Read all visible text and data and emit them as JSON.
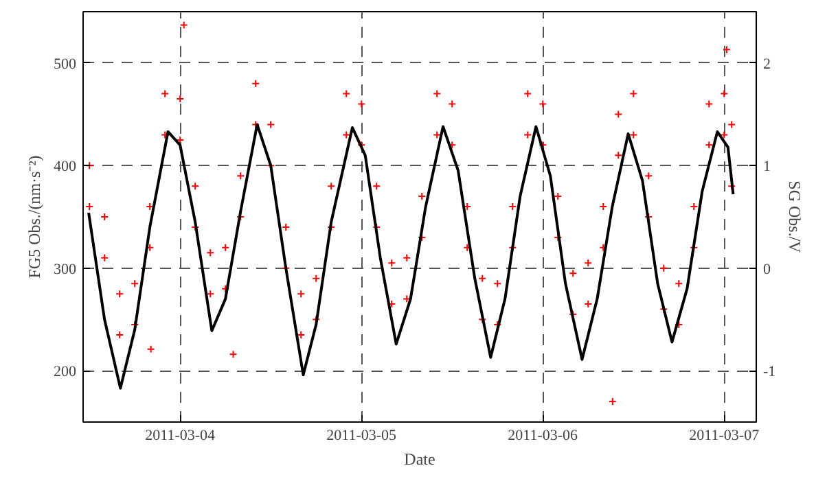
{
  "chart_data": {
    "type": "scatter",
    "xlabel": "Date",
    "ylabel": "FG5 Obs./(nm·s⁻²)",
    "y2label": "SG Obs./V",
    "xlim": [
      "2011-03-03T11:10",
      "2011-03-07T04:15"
    ],
    "xticks": [
      "2011-03-04",
      "2011-03-05",
      "2011-03-06",
      "2011-03-07"
    ],
    "ylim": [
      150,
      550
    ],
    "yticks": [
      200,
      300,
      400,
      500
    ],
    "y2lim": [
      -1.5,
      2.5
    ],
    "y2ticks": [
      -1,
      0,
      1,
      2
    ],
    "grid": true,
    "series": [
      {
        "marker": "cross",
        "color": "#ff0000",
        "x": [
          "2011-03-03T12:00",
          "2011-03-03T12:00",
          "2011-03-03T14:00",
          "2011-03-03T14:00",
          "2011-03-03T16:00",
          "2011-03-03T16:00",
          "2011-03-03T18:00",
          "2011-03-03T18:00",
          "2011-03-03T20:00",
          "2011-03-03T20:00",
          "2011-03-03T22:00",
          "2011-03-03T22:00",
          "2011-03-04T00:00",
          "2011-03-04T00:00",
          "2011-03-04T02:00",
          "2011-03-04T02:00",
          "2011-03-04T04:00",
          "2011-03-04T04:00",
          "2011-03-04T06:00",
          "2011-03-04T06:00",
          "2011-03-04T08:00",
          "2011-03-04T08:00",
          "2011-03-04T10:00",
          "2011-03-04T10:00",
          "2011-03-04T12:00",
          "2011-03-04T12:00",
          "2011-03-04T14:00",
          "2011-03-04T14:00",
          "2011-03-04T16:00",
          "2011-03-04T16:00",
          "2011-03-04T18:00",
          "2011-03-04T18:00",
          "2011-03-04T20:00",
          "2011-03-04T20:00",
          "2011-03-04T22:00",
          "2011-03-04T22:00",
          "2011-03-05T00:00",
          "2011-03-05T00:00",
          "2011-03-05T02:00",
          "2011-03-05T02:00",
          "2011-03-05T04:00",
          "2011-03-05T04:00",
          "2011-03-05T06:00",
          "2011-03-05T06:00",
          "2011-03-05T08:00",
          "2011-03-05T08:00",
          "2011-03-05T10:00",
          "2011-03-05T10:00",
          "2011-03-05T12:00",
          "2011-03-05T12:00",
          "2011-03-05T14:00",
          "2011-03-05T14:00",
          "2011-03-05T16:00",
          "2011-03-05T16:00",
          "2011-03-05T18:00",
          "2011-03-05T18:00",
          "2011-03-05T20:00",
          "2011-03-05T20:00",
          "2011-03-05T22:00",
          "2011-03-05T22:00",
          "2011-03-06T00:00",
          "2011-03-06T00:00",
          "2011-03-06T02:00",
          "2011-03-06T02:00",
          "2011-03-06T04:00",
          "2011-03-06T04:00",
          "2011-03-06T06:00",
          "2011-03-06T06:00",
          "2011-03-06T08:00",
          "2011-03-06T08:00",
          "2011-03-06T10:00",
          "2011-03-06T10:00",
          "2011-03-06T12:00",
          "2011-03-06T12:00",
          "2011-03-06T14:00",
          "2011-03-06T14:00",
          "2011-03-06T16:00",
          "2011-03-06T16:00",
          "2011-03-06T18:00",
          "2011-03-06T18:00",
          "2011-03-06T20:00",
          "2011-03-06T20:00",
          "2011-03-06T22:00",
          "2011-03-06T22:00",
          "2011-03-07T00:00",
          "2011-03-07T00:00",
          "2011-03-07T01:00",
          "2011-03-07T01:00",
          "2011-03-04T00:30",
          "2011-03-03T20:08",
          "2011-03-04T07:02",
          "2011-03-06T09:14",
          "2011-03-07T00:20"
        ],
        "values": [
          400,
          360,
          350,
          310,
          275,
          235,
          285,
          245,
          360,
          320,
          470,
          430,
          465,
          425,
          380,
          340,
          315,
          275,
          320,
          280,
          390,
          350,
          480,
          440,
          440,
          400,
          340,
          300,
          275,
          235,
          290,
          250,
          380,
          340,
          470,
          430,
          460,
          420,
          380,
          340,
          305,
          265,
          310,
          270,
          370,
          330,
          470,
          430,
          460,
          420,
          360,
          320,
          290,
          250,
          285,
          245,
          360,
          320,
          470,
          430,
          460,
          420,
          370,
          330,
          295,
          255,
          305,
          265,
          360,
          320,
          450,
          410,
          470,
          430,
          390,
          350,
          300,
          260,
          285,
          245,
          360,
          320,
          460,
          420,
          470,
          430,
          440,
          380,
          537,
          221,
          216,
          170,
          513
        ]
      },
      {
        "type": "line",
        "axis": "y2",
        "color": "#000000",
        "x": [
          "2011-03-03T11:54",
          "2011-03-03T14:00",
          "2011-03-03T16:06",
          "2011-03-03T18:00",
          "2011-03-03T20:00",
          "2011-03-03T22:24",
          "2011-03-04T00:00",
          "2011-03-04T02:00",
          "2011-03-04T04:12",
          "2011-03-04T06:00",
          "2011-03-04T08:00",
          "2011-03-04T10:12",
          "2011-03-04T12:00",
          "2011-03-04T14:00",
          "2011-03-04T16:18",
          "2011-03-04T18:00",
          "2011-03-04T20:00",
          "2011-03-04T22:48",
          "2011-03-05T00:30",
          "2011-03-05T02:30",
          "2011-03-05T04:36",
          "2011-03-05T06:30",
          "2011-03-05T08:30",
          "2011-03-05T10:48",
          "2011-03-05T12:48",
          "2011-03-05T15:00",
          "2011-03-05T17:06",
          "2011-03-05T19:00",
          "2011-03-05T21:00",
          "2011-03-05T23:06",
          "2011-03-06T01:00",
          "2011-03-06T03:00",
          "2011-03-06T05:12",
          "2011-03-06T07:12",
          "2011-03-06T09:12",
          "2011-03-06T11:18",
          "2011-03-06T13:12",
          "2011-03-06T15:12",
          "2011-03-06T17:06",
          "2011-03-06T19:06",
          "2011-03-06T21:06",
          "2011-03-06T23:06",
          "2011-03-07T00:30",
          "2011-03-07T01:12"
        ],
        "values": [
          0.54,
          -0.5,
          -1.17,
          -0.6,
          0.4,
          1.33,
          1.2,
          0.45,
          -0.61,
          -0.3,
          0.55,
          1.4,
          1.0,
          0.0,
          -1.04,
          -0.55,
          0.45,
          1.37,
          1.1,
          0.1,
          -0.74,
          -0.3,
          0.6,
          1.38,
          0.95,
          -0.1,
          -0.87,
          -0.3,
          0.7,
          1.38,
          0.9,
          -0.15,
          -0.89,
          -0.3,
          0.6,
          1.31,
          0.85,
          -0.15,
          -0.72,
          -0.2,
          0.75,
          1.33,
          1.18,
          0.72
        ]
      }
    ]
  }
}
